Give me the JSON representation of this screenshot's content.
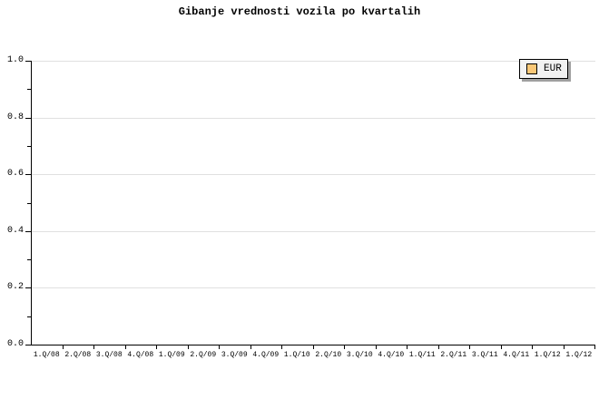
{
  "title": "Gibanje vrednosti vozila po kvartalih",
  "legend": {
    "label": "EUR",
    "swatch_color": "#fac878",
    "background": "#f2f2f2",
    "shadow_color": "#a0a0a0",
    "position": "top-right"
  },
  "colors": {
    "background": "#ffffff",
    "axis": "#000000",
    "gridline": "#e0e0e0",
    "text": "#000000"
  },
  "y_axis": {
    "min": 0.0,
    "max": 1.0,
    "major_step": 0.2,
    "minor_step": 0.1,
    "tick_labels": [
      "0.0",
      "0.2",
      "0.4",
      "0.6",
      "0.8",
      "1.0"
    ]
  },
  "x_axis": {
    "labels": [
      "1.Q/08",
      "2.Q/08",
      "3.Q/08",
      "4.Q/08",
      "1.Q/09",
      "2.Q/09",
      "3.Q/09",
      "4.Q/09",
      "1.Q/10",
      "2.Q/10",
      "3.Q/10",
      "4.Q/10",
      "1.Q/11",
      "2.Q/11",
      "3.Q/11",
      "4.Q/11",
      "1.Q/12",
      "1.Q/12"
    ]
  },
  "chart_data": {
    "type": "line",
    "title": "Gibanje vrednosti vozila po kvartalih",
    "categories": [
      "1.Q/08",
      "2.Q/08",
      "3.Q/08",
      "4.Q/08",
      "1.Q/09",
      "2.Q/09",
      "3.Q/09",
      "4.Q/09",
      "1.Q/10",
      "2.Q/10",
      "3.Q/10",
      "4.Q/10",
      "1.Q/11",
      "2.Q/11",
      "3.Q/11",
      "4.Q/11",
      "1.Q/12",
      "1.Q/12"
    ],
    "series": [
      {
        "name": "EUR",
        "values": []
      }
    ],
    "xlabel": "",
    "ylabel": "",
    "ylim": [
      0.0,
      1.0
    ],
    "grid": "horizontal-major",
    "legend_position": "top-right",
    "plot_is_empty": true
  }
}
